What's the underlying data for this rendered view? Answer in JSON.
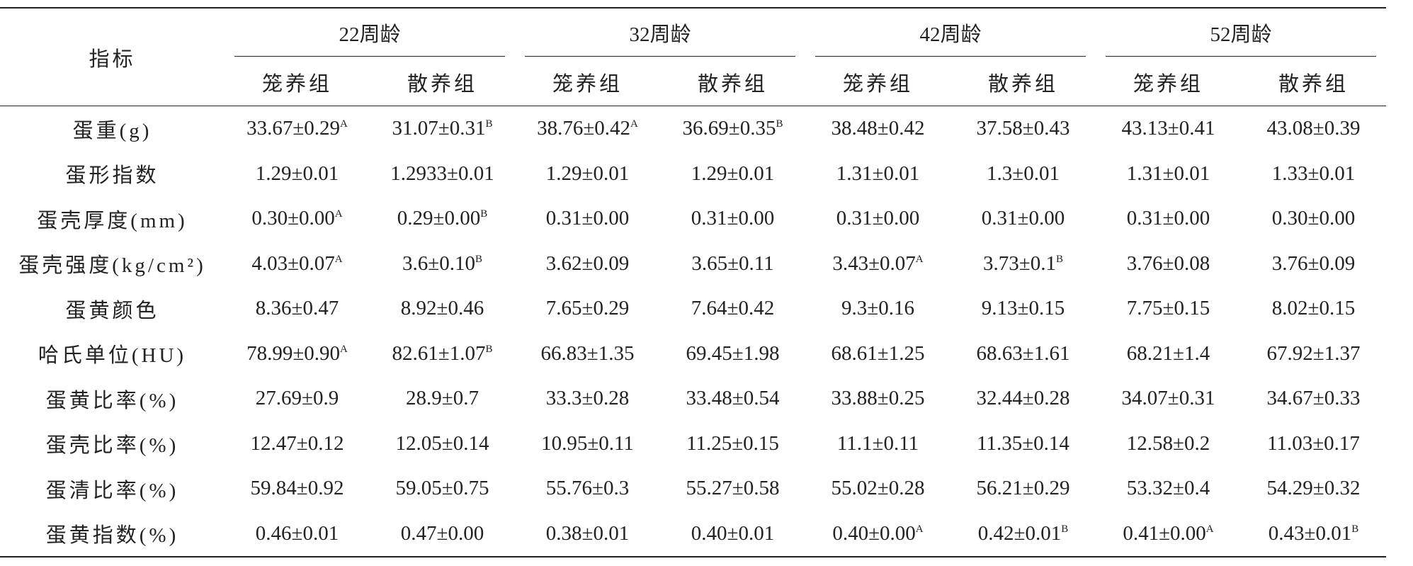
{
  "header": {
    "label": "指标",
    "groups": [
      {
        "title": "22周龄",
        "columns": [
          "笼养组",
          "散养组"
        ]
      },
      {
        "title": "32周龄",
        "columns": [
          "笼养组",
          "散养组"
        ]
      },
      {
        "title": "42周龄",
        "columns": [
          "笼养组",
          "散养组"
        ]
      },
      {
        "title": "52周龄",
        "columns": [
          "笼养组",
          "散养组"
        ]
      }
    ]
  },
  "rows": [
    {
      "label": "蛋重(g)",
      "cells": [
        {
          "text": "33.67±0.29",
          "sup": "A"
        },
        {
          "text": "31.07±0.31",
          "sup": "B"
        },
        {
          "text": "38.76±0.42",
          "sup": "A"
        },
        {
          "text": "36.69±0.35",
          "sup": "B"
        },
        "38.48±0.42",
        "37.58±0.43",
        "43.13±0.41",
        "43.08±0.39"
      ]
    },
    {
      "label": "蛋形指数",
      "cells": [
        "1.29±0.01",
        "1.2933±0.01",
        "1.29±0.01",
        "1.29±0.01",
        "1.31±0.01",
        "1.3±0.01",
        "1.31±0.01",
        "1.33±0.01"
      ]
    },
    {
      "label": "蛋壳厚度(mm)",
      "cells": [
        {
          "text": "0.30±0.00",
          "sup": "A"
        },
        {
          "text": "0.29±0.00",
          "sup": "B"
        },
        "0.31±0.00",
        "0.31±0.00",
        "0.31±0.00",
        "0.31±0.00",
        "0.31±0.00",
        "0.30±0.00"
      ]
    },
    {
      "label": "蛋壳强度(kg/cm²)",
      "cells": [
        {
          "text": "4.03±0.07",
          "sup": "A"
        },
        {
          "text": "3.6±0.10",
          "sup": "B"
        },
        "3.62±0.09",
        "3.65±0.11",
        {
          "text": "3.43±0.07",
          "sup": "A"
        },
        {
          "text": "3.73±0.1",
          "sup": "B"
        },
        "3.76±0.08",
        "3.76±0.09"
      ]
    },
    {
      "label": "蛋黄颜色",
      "cells": [
        "8.36±0.47",
        "8.92±0.46",
        "7.65±0.29",
        "7.64±0.42",
        "9.3±0.16",
        "9.13±0.15",
        "7.75±0.15",
        "8.02±0.15"
      ]
    },
    {
      "label": "哈氏单位(HU)",
      "cells": [
        {
          "text": "78.99±0.90",
          "sup": "A"
        },
        {
          "text": "82.61±1.07",
          "sup": "B"
        },
        "66.83±1.35",
        "69.45±1.98",
        "68.61±1.25",
        "68.63±1.61",
        "68.21±1.4",
        "67.92±1.37"
      ]
    },
    {
      "label": "蛋黄比率(%)",
      "cells": [
        "27.69±0.9",
        "28.9±0.7",
        "33.3±0.28",
        "33.48±0.54",
        "33.88±0.25",
        "32.44±0.28",
        "34.07±0.31",
        "34.67±0.33"
      ]
    },
    {
      "label": "蛋壳比率(%)",
      "cells": [
        "12.47±0.12",
        "12.05±0.14",
        "10.95±0.11",
        "11.25±0.15",
        "11.1±0.11",
        "11.35±0.14",
        "12.58±0.2",
        "11.03±0.17"
      ]
    },
    {
      "label": "蛋清比率(%)",
      "cells": [
        "59.84±0.92",
        "59.05±0.75",
        "55.76±0.3",
        "55.27±0.58",
        "55.02±0.28",
        "56.21±0.29",
        "53.32±0.4",
        "54.29±0.32"
      ]
    },
    {
      "label": "蛋黄指数(%)",
      "cells": [
        "0.46±0.01",
        "0.47±0.00",
        "0.38±0.01",
        "0.40±0.01",
        {
          "text": "0.40±0.00",
          "sup": "A"
        },
        {
          "text": "0.42±0.01",
          "sup": "B"
        },
        {
          "text": "0.41±0.00",
          "sup": "A"
        },
        {
          "text": "0.43±0.01",
          "sup": "B"
        }
      ]
    }
  ]
}
